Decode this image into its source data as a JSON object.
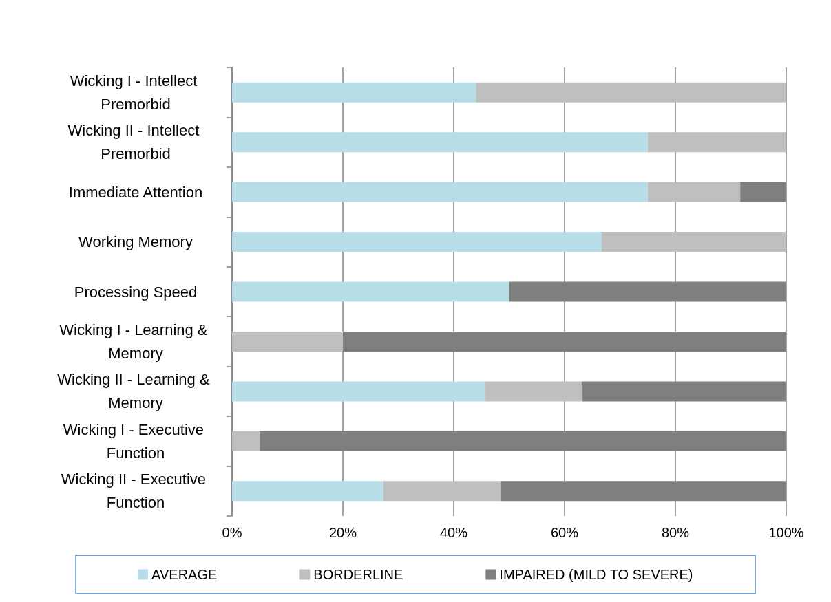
{
  "chart_data": {
    "type": "bar",
    "orientation": "horizontal",
    "stacked": true,
    "categories": [
      "Wicking I - Intellect Premorbid",
      "Wicking II - Intellect Premorbid",
      "Immediate Attention",
      "Working Memory",
      "Processing Speed",
      "Wicking I - Learning & Memory",
      "Wicking II - Learning & Memory",
      "Wicking I - Executive Function",
      "Wicking II - Executive Function"
    ],
    "series": [
      {
        "name": "AVERAGE",
        "color": "#b7dde8",
        "values": [
          44,
          75,
          75,
          66.7,
          50,
          0,
          45.6,
          0,
          27.3
        ]
      },
      {
        "name": "BORDERLINE",
        "color": "#bfbfbf",
        "values": [
          56,
          25,
          16.7,
          33.3,
          0,
          20,
          17.5,
          5,
          21.2
        ]
      },
      {
        "name": "IMPAIRED (MILD TO SEVERE)",
        "color": "#7f7f7f",
        "values": [
          0,
          0,
          8.3,
          0,
          50,
          80,
          36.9,
          95,
          51.5
        ]
      }
    ],
    "xlim": [
      0,
      100
    ],
    "xticks": [
      {
        "value": 0,
        "label": "0%"
      },
      {
        "value": 20,
        "label": "20%"
      },
      {
        "value": 40,
        "label": "40%"
      },
      {
        "value": 60,
        "label": "60%"
      },
      {
        "value": 80,
        "label": "80%"
      },
      {
        "value": 100,
        "label": "100%"
      }
    ],
    "grid": "x",
    "legend": "bottom"
  }
}
